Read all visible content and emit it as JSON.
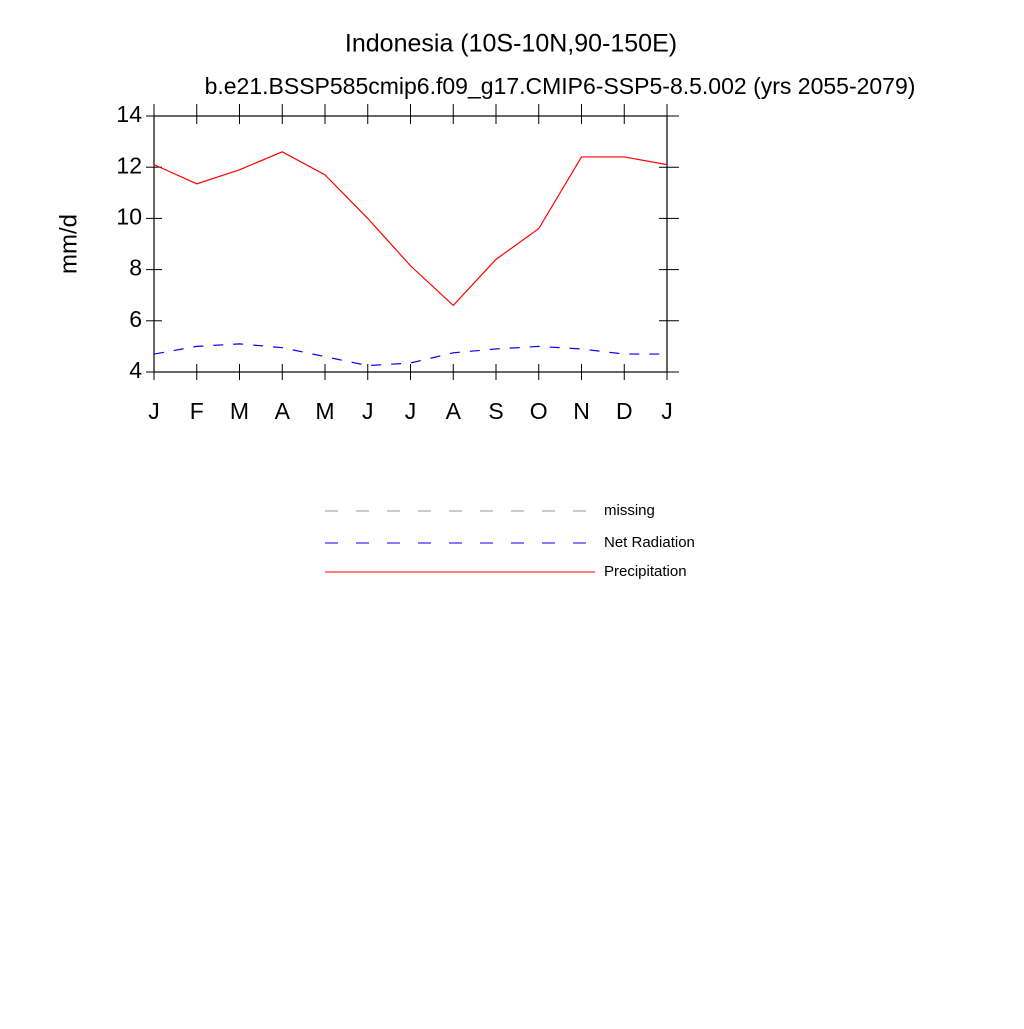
{
  "chart_data": {
    "type": "line",
    "title": "Indonesia (10S-10N,90-150E)",
    "subtitle": "b.e21.BSSP585cmip6.f09_g17.CMIP6-SSP5-8.5.002 (yrs 2055-2079)",
    "y_label": "mm/d",
    "categories": [
      "J",
      "F",
      "M",
      "A",
      "M",
      "J",
      "J",
      "A",
      "S",
      "O",
      "N",
      "D",
      "J"
    ],
    "series": [
      {
        "name": "missing",
        "color": "#999999",
        "line_style": "dashed",
        "values": [
          null,
          null,
          null,
          null,
          null,
          null,
          null,
          null,
          null,
          null,
          null,
          null,
          null
        ]
      },
      {
        "name": "Net Radiation",
        "color": "#0000ff",
        "line_style": "dashed",
        "values": [
          4.7,
          5.0,
          5.1,
          4.95,
          4.6,
          4.25,
          4.35,
          4.75,
          4.9,
          5.0,
          4.9,
          4.7,
          4.7
        ]
      },
      {
        "name": "Precipitation",
        "color": "#ff0000",
        "line_style": "solid",
        "values": [
          12.1,
          11.35,
          11.9,
          12.6,
          11.7,
          10.0,
          8.15,
          6.6,
          8.4,
          9.6,
          12.4,
          12.4,
          12.1
        ]
      }
    ],
    "ylim": [
      4,
      14
    ],
    "yticks": [
      4,
      6,
      8,
      10,
      12,
      14
    ],
    "grid": false
  }
}
